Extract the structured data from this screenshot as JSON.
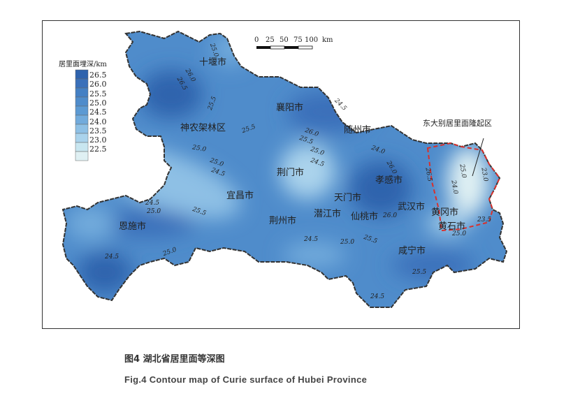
{
  "legend": {
    "title": "居里面埋深/km",
    "values": [
      "26.5",
      "26.0",
      "25.5",
      "25.0",
      "24.5",
      "24.0",
      "23.5",
      "23.0",
      "22.5"
    ],
    "colors": [
      "#2f63ad",
      "#3a70ba",
      "#4480c4",
      "#4f8ccb",
      "#5c9ad3",
      "#72abdc",
      "#8ec0e5",
      "#aad3ec",
      "#c8e6f0",
      "#dff0f3"
    ]
  },
  "scale": {
    "ticks": [
      "0",
      "25",
      "50",
      "75",
      "100"
    ],
    "unit": "km"
  },
  "cities": [
    "十堰市",
    "襄阳市",
    "神农架林区",
    "随州市",
    "荆门市",
    "孝感市",
    "宜昌市",
    "天门市",
    "武汉市",
    "黄冈市",
    "恩施市",
    "潜江市",
    "仙桃市",
    "荆州市",
    "黄石市",
    "咸宁市"
  ],
  "contours": [
    "25.0",
    "26.0",
    "26.5",
    "25.5",
    "25.5",
    "24.5",
    "25.0",
    "26.0",
    "25.5",
    "25.0",
    "24.5",
    "25.0",
    "24.5",
    "24.0",
    "26.0",
    "26.5",
    "25.0",
    "24.0",
    "23.0",
    "23.5",
    "24.5",
    "25.0",
    "25.5",
    "25.0",
    "24.5",
    "24.5",
    "25.0",
    "25.5",
    "26.0",
    "25.0",
    "25.0",
    "25.5",
    "24.5"
  ],
  "annotation": "东大别居里面隆起区",
  "caption_cn": "图4 湖北省居里面等深图",
  "caption_en": "Fig.4 Contour map of Curie surface of Hubei Province",
  "colors": {
    "boundary_dash": "#d9302b"
  }
}
